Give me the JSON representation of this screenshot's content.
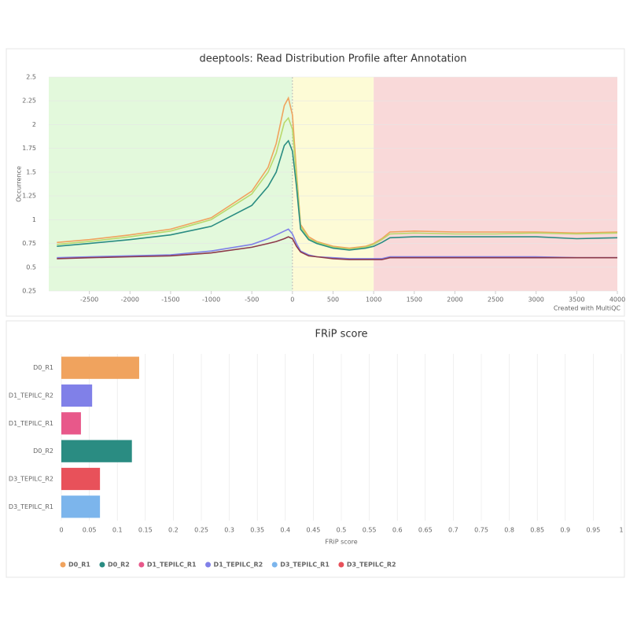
{
  "chart_data": [
    {
      "type": "line",
      "title": "deeptools: Read Distribution Profile after Annotation",
      "y_label": "Occurrence",
      "credit": "Created with MultiQC",
      "xlim": [
        -3000,
        4000
      ],
      "xticks": [
        -2500,
        -2000,
        -1500,
        -1000,
        -500,
        0,
        500,
        1000,
        1500,
        2000,
        2500,
        3000,
        3500,
        4000
      ],
      "ylim": [
        0.25,
        2.5
      ],
      "yticks": [
        0.25,
        0.5,
        0.75,
        1,
        1.25,
        1.5,
        1.75,
        2,
        2.25,
        2.5
      ],
      "grid": true,
      "bands": [
        {
          "from": -3000,
          "to": 0,
          "color": "#e3f9dc"
        },
        {
          "from": 0,
          "to": 1000,
          "color": "#fdfbd6"
        },
        {
          "from": 1000,
          "to": 4000,
          "color": "#f9d9d9"
        }
      ],
      "x": [
        -2900,
        -2500,
        -2000,
        -1500,
        -1000,
        -500,
        -300,
        -200,
        -100,
        -50,
        0,
        50,
        100,
        200,
        300,
        500,
        700,
        900,
        1000,
        1100,
        1200,
        1500,
        2000,
        2500,
        3000,
        3500,
        4000
      ],
      "series": [
        {
          "color": "#f0a35e",
          "values": [
            0.76,
            0.79,
            0.84,
            0.9,
            1.02,
            1.3,
            1.55,
            1.8,
            2.2,
            2.28,
            2.1,
            1.5,
            0.95,
            0.82,
            0.77,
            0.72,
            0.7,
            0.72,
            0.75,
            0.8,
            0.87,
            0.88,
            0.87,
            0.87,
            0.87,
            0.86,
            0.87
          ]
        },
        {
          "color": "#b9d96c",
          "values": [
            0.74,
            0.77,
            0.82,
            0.88,
            1.0,
            1.27,
            1.5,
            1.7,
            2.02,
            2.07,
            1.95,
            1.45,
            0.93,
            0.8,
            0.76,
            0.71,
            0.69,
            0.71,
            0.74,
            0.79,
            0.85,
            0.86,
            0.85,
            0.85,
            0.86,
            0.85,
            0.86
          ]
        },
        {
          "color": "#2a8c82",
          "values": [
            0.72,
            0.75,
            0.79,
            0.84,
            0.93,
            1.15,
            1.35,
            1.5,
            1.78,
            1.83,
            1.72,
            1.35,
            0.9,
            0.79,
            0.75,
            0.7,
            0.68,
            0.7,
            0.72,
            0.76,
            0.81,
            0.82,
            0.82,
            0.82,
            0.82,
            0.8,
            0.81
          ]
        },
        {
          "color": "#8080e8",
          "values": [
            0.6,
            0.61,
            0.62,
            0.63,
            0.67,
            0.74,
            0.8,
            0.84,
            0.88,
            0.9,
            0.85,
            0.75,
            0.67,
            0.63,
            0.61,
            0.6,
            0.59,
            0.59,
            0.59,
            0.59,
            0.61,
            0.61,
            0.61,
            0.61,
            0.61,
            0.6,
            0.6
          ]
        },
        {
          "color": "#8c3a4a",
          "values": [
            0.59,
            0.6,
            0.61,
            0.62,
            0.65,
            0.71,
            0.75,
            0.77,
            0.8,
            0.82,
            0.8,
            0.72,
            0.66,
            0.62,
            0.61,
            0.59,
            0.58,
            0.58,
            0.58,
            0.58,
            0.6,
            0.6,
            0.6,
            0.6,
            0.6,
            0.6,
            0.6
          ]
        }
      ]
    },
    {
      "type": "bar",
      "orientation": "horizontal",
      "title": "FRiP score",
      "x_label": "FRiP score",
      "categories": [
        "D0_R1",
        "D1_TEPILC_R2",
        "D1_TEPILC_R1",
        "D0_R2",
        "D3_TEPILC_R2",
        "D3_TEPILC_R1"
      ],
      "values": [
        0.139,
        0.055,
        0.035,
        0.126,
        0.069,
        0.069
      ],
      "colors": [
        "#f0a35e",
        "#8080e8",
        "#e8588a",
        "#2a8c82",
        "#e8515a",
        "#7cb5ec"
      ],
      "xlim": [
        0,
        1
      ],
      "xticks": [
        0,
        0.05,
        0.1,
        0.15,
        0.2,
        0.25,
        0.3,
        0.35,
        0.4,
        0.45,
        0.5,
        0.55,
        0.6,
        0.65,
        0.7,
        0.75,
        0.8,
        0.85,
        0.9,
        0.95,
        1
      ],
      "grid": true,
      "legend": [
        {
          "name": "D0_R1",
          "color": "#f0a35e"
        },
        {
          "name": "D0_R2",
          "color": "#2a8c82"
        },
        {
          "name": "D1_TEPILC_R1",
          "color": "#e8588a"
        },
        {
          "name": "D1_TEPILC_R2",
          "color": "#8080e8"
        },
        {
          "name": "D3_TEPILC_R1",
          "color": "#7cb5ec"
        },
        {
          "name": "D3_TEPILC_R2",
          "color": "#e8515a"
        }
      ]
    }
  ]
}
